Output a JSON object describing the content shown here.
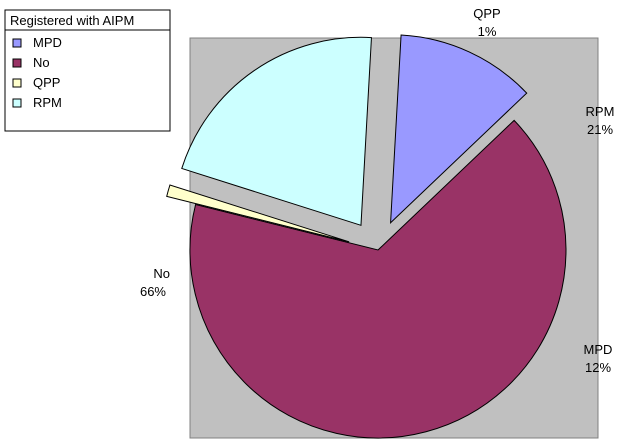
{
  "chart_data": {
    "type": "pie",
    "legend": {
      "title": "Registered with AIPM",
      "placement": "top-left"
    },
    "slices": [
      {
        "name": "MPD",
        "value": 12,
        "label": "12%",
        "color": "#9999ff",
        "exploded": true
      },
      {
        "name": "No",
        "value": 66,
        "label": "66%",
        "color": "#993366",
        "exploded": false
      },
      {
        "name": "QPP",
        "value": 1,
        "label": "1%",
        "color": "#ffffcc",
        "exploded": true
      },
      {
        "name": "RPM",
        "value": 21,
        "label": "21%",
        "color": "#ccffff",
        "exploded": true
      }
    ],
    "plot_background": "#c0c0c0"
  }
}
